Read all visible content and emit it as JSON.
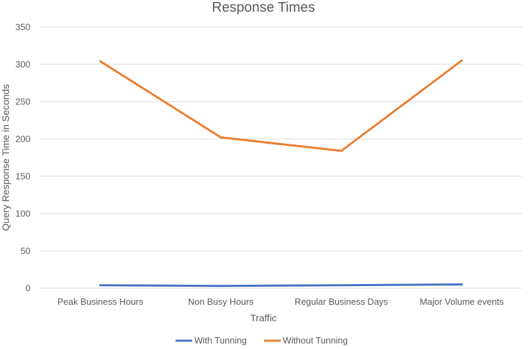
{
  "chart_data": {
    "type": "line",
    "title": "Response Times",
    "xlabel": "Traffic",
    "ylabel": "Query Response Time in Seconds",
    "categories": [
      "Peak Business Hours",
      "Non Busy Hours",
      "Regular Business Days",
      "Major Volume events"
    ],
    "ylim": [
      0,
      350
    ],
    "yticks": [
      0,
      50,
      100,
      150,
      200,
      250,
      300,
      350
    ],
    "grid": true,
    "legend_position": "bottom",
    "series": [
      {
        "name": "With Tunning",
        "color": "#4472c4",
        "values": [
          4,
          3,
          4,
          5
        ]
      },
      {
        "name": "Without Tunning",
        "color": "#ed7d31",
        "values": [
          304,
          202,
          184,
          305
        ]
      }
    ]
  }
}
